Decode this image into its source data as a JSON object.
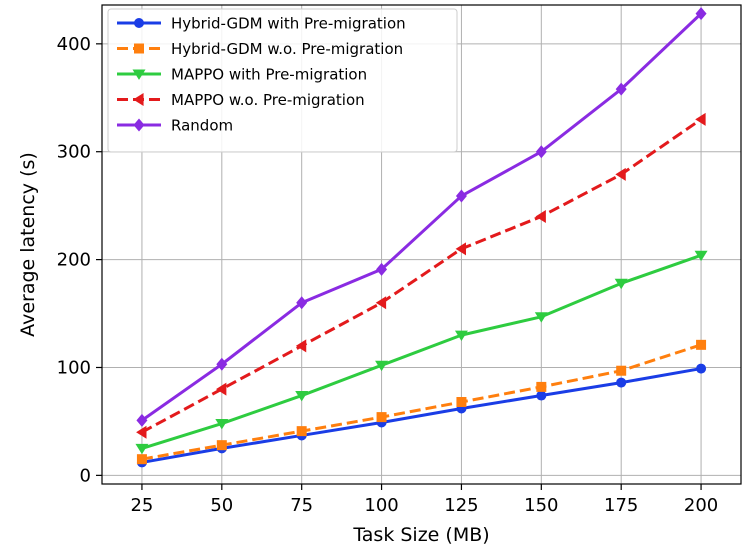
{
  "chart_data": {
    "type": "line",
    "title": "",
    "xlabel": "Task Size (MB)",
    "ylabel": "Average latency (s)",
    "x": [
      25,
      50,
      75,
      100,
      125,
      150,
      175,
      200
    ],
    "xlim": [
      12.5,
      212.5
    ],
    "ylim": [
      -8,
      436
    ],
    "xticks": [
      "25",
      "50",
      "75",
      "100",
      "125",
      "150",
      "175",
      "200"
    ],
    "yticks": [
      "0",
      "100",
      "200",
      "300",
      "400"
    ],
    "grid": true,
    "legend_position": "top-left",
    "series": [
      {
        "name": "Hybrid-GDM with Pre-migration",
        "color": "#1a3de6",
        "dash": "solid",
        "marker": "circle",
        "values": [
          12,
          25,
          37,
          49,
          62,
          74,
          86,
          99
        ]
      },
      {
        "name": "Hybrid-GDM w.o. Pre-migration",
        "color": "#ff7f0e",
        "dash": "dashed",
        "marker": "square",
        "values": [
          15,
          28,
          41,
          54,
          68,
          82,
          97,
          121
        ]
      },
      {
        "name": "MAPPO with Pre-migration",
        "color": "#2ecc40",
        "dash": "solid",
        "marker": "triangle-down",
        "values": [
          25,
          48,
          74,
          102,
          130,
          147,
          178,
          204
        ]
      },
      {
        "name": "MAPPO w.o. Pre-migration",
        "color": "#e31a1c",
        "dash": "dashed",
        "marker": "triangle-left",
        "values": [
          40,
          80,
          120,
          160,
          210,
          240,
          279,
          330
        ]
      },
      {
        "name": "Random",
        "color": "#8a2be2",
        "dash": "solid",
        "marker": "diamond",
        "values": [
          51,
          103,
          160,
          191,
          259,
          300,
          358,
          428
        ]
      }
    ]
  }
}
